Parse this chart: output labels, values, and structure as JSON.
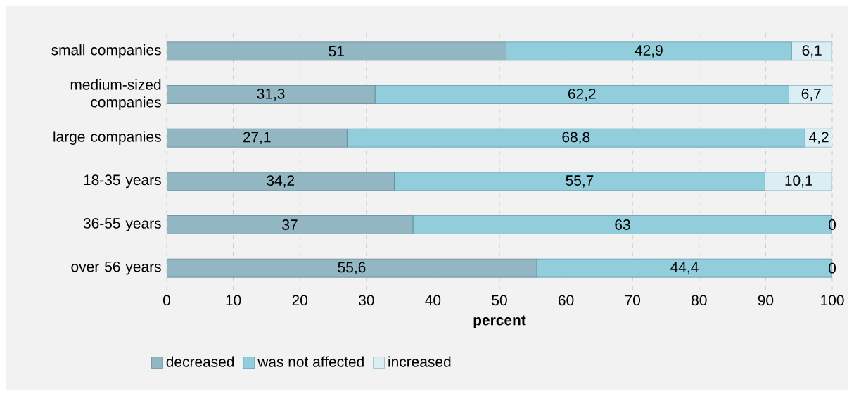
{
  "chart_data": {
    "type": "bar",
    "orientation": "horizontal",
    "stacked": true,
    "xlabel": "**percent**",
    "categories": [
      "small companies",
      "medium-sized companies",
      "large companies",
      "18-35 years",
      "36-55 years",
      "over 56 years"
    ],
    "series": [
      {
        "name": "decreased",
        "color": "#93b6c3",
        "values": [
          51,
          31.3,
          27.1,
          34.2,
          37,
          55.6
        ],
        "value_labels": [
          "51",
          "31,3",
          "27,1",
          "34,2",
          "37",
          "55,6"
        ]
      },
      {
        "name": "was not affected",
        "color": "#92cddc",
        "values": [
          42.9,
          62.2,
          68.8,
          55.7,
          63,
          44.4
        ],
        "value_labels": [
          "42,9",
          "62,2",
          "68,8",
          "55,7",
          "63",
          "44,4"
        ]
      },
      {
        "name": "increased",
        "color": "#dbeef4",
        "values": [
          6.1,
          6.7,
          4.2,
          10.1,
          0,
          0
        ],
        "value_labels": [
          "6,1",
          "6,7",
          "4,2",
          "10,1",
          "0",
          "0"
        ]
      }
    ],
    "xlim": [
      0,
      100
    ],
    "xticks": [
      0,
      10,
      20,
      30,
      40,
      50,
      60,
      70,
      80,
      90,
      100
    ],
    "grid": "x",
    "legend": "bottom left"
  }
}
